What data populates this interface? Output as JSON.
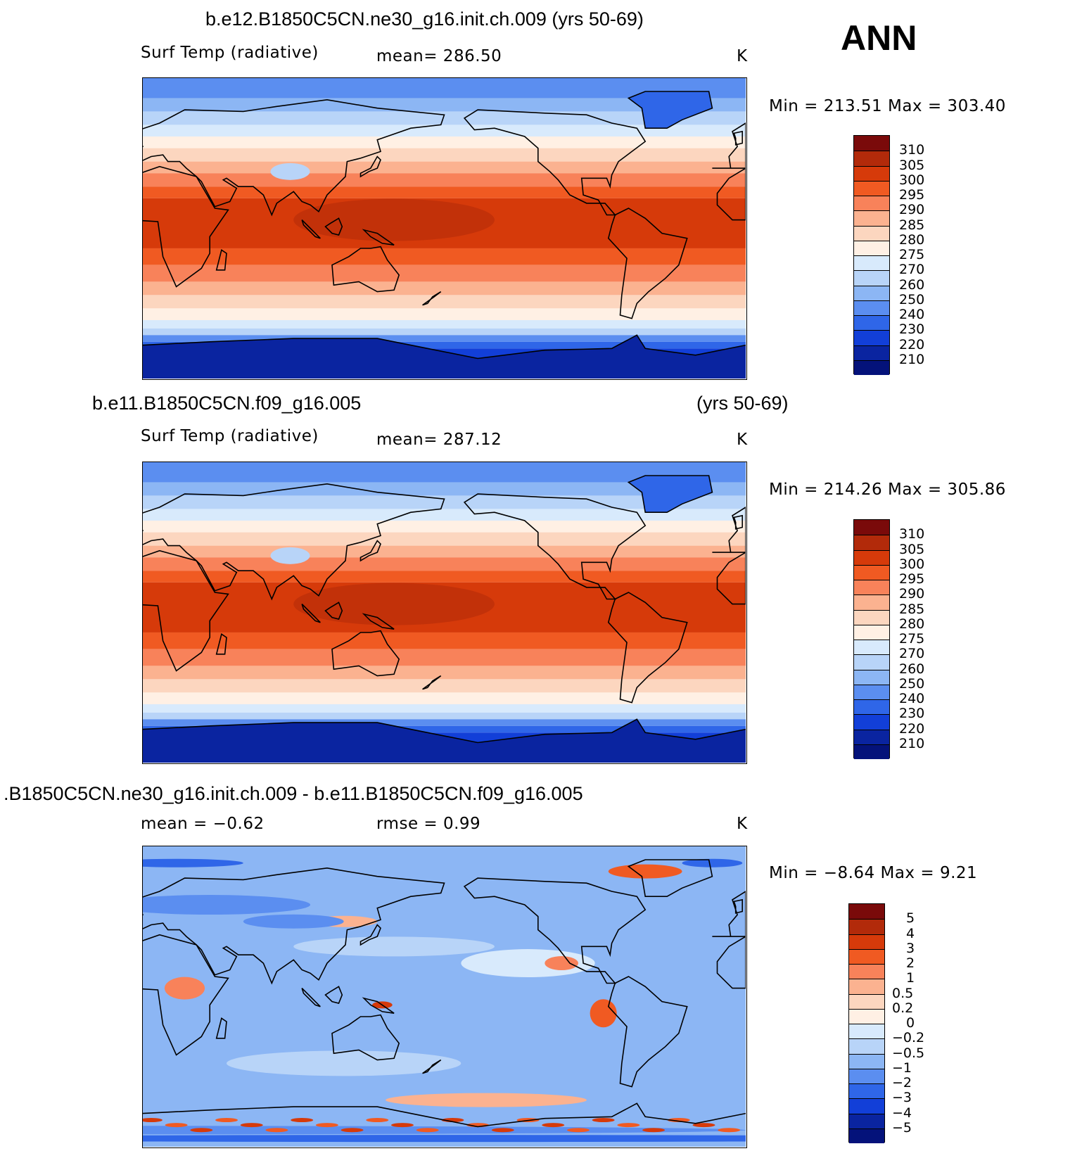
{
  "season": "ANN",
  "panels": [
    {
      "title": "b.e12.B1850C5CN.ne30_g16.init.ch.009 (yrs 50-69)",
      "title2": "",
      "left_label": "Surf Temp (radiative)",
      "center_label": "mean= 286.50",
      "units": "K",
      "minmax": "Min = 213.51 Max = 303.40",
      "colorbar": {
        "labels": [
          "310",
          "305",
          "300",
          "295",
          "290",
          "285",
          "280",
          "275",
          "270",
          "260",
          "250",
          "240",
          "230",
          "220",
          "210"
        ],
        "colors": [
          "#7a0a0a",
          "#b22a0a",
          "#d63a0a",
          "#f05a22",
          "#f8825a",
          "#fbb290",
          "#fcd6bf",
          "#fff0e4",
          "#d8eafc",
          "#b8d4f8",
          "#8cb6f4",
          "#5b8ef0",
          "#2f66e8",
          "#123fd8",
          "#0a24a0",
          "#04127a"
        ]
      },
      "map_style": "temp"
    },
    {
      "title": "b.e11.B1850C5CN.f09_g16.005",
      "title2": "(yrs 50-69)",
      "left_label": "Surf Temp (radiative)",
      "center_label": "mean= 287.12",
      "units": "K",
      "minmax": "Min = 214.26 Max = 305.86",
      "colorbar": {
        "labels": [
          "310",
          "305",
          "300",
          "295",
          "290",
          "285",
          "280",
          "275",
          "270",
          "260",
          "250",
          "240",
          "230",
          "220",
          "210"
        ],
        "colors": [
          "#7a0a0a",
          "#b22a0a",
          "#d63a0a",
          "#f05a22",
          "#f8825a",
          "#fbb290",
          "#fcd6bf",
          "#fff0e4",
          "#d8eafc",
          "#b8d4f8",
          "#8cb6f4",
          "#5b8ef0",
          "#2f66e8",
          "#123fd8",
          "#0a24a0",
          "#04127a"
        ]
      },
      "map_style": "temp"
    },
    {
      "title": ".B1850C5CN.ne30_g16.init.ch.009 - b.e11.B1850C5CN.f09_g16.005",
      "title2": "",
      "left_label": "mean =   −0.62",
      "center_label": "rmse =    0.99",
      "units": "K",
      "minmax": "Min =   −8.64 Max =    9.21",
      "colorbar": {
        "labels": [
          "5",
          "4",
          "3",
          "2",
          "1",
          "0.5",
          "0.2",
          "0",
          "−0.2",
          "−0.5",
          "−1",
          "−2",
          "−3",
          "−4",
          "−5"
        ],
        "colors": [
          "#7a0a0a",
          "#b22a0a",
          "#d63a0a",
          "#f05a22",
          "#f8825a",
          "#fbb290",
          "#fcd6bf",
          "#fff0e4",
          "#d8eafc",
          "#b8d4f8",
          "#8cb6f4",
          "#5b8ef0",
          "#2f66e8",
          "#123fd8",
          "#0a24a0",
          "#04127a"
        ]
      },
      "map_style": "diff"
    }
  ]
}
